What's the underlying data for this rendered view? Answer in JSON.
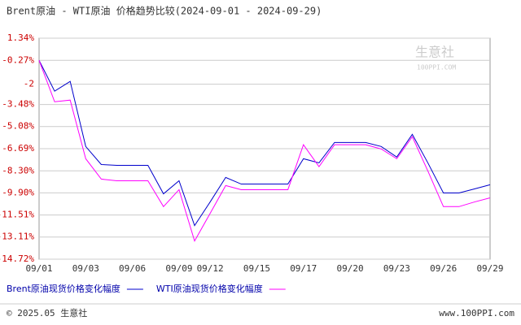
{
  "chart_data": {
    "type": "line",
    "title": "Brent原油 - WTI原油 价格趋势比较(2024-09-01 - 2024-09-29)",
    "categories": [
      "09/01",
      null,
      null,
      "09/03",
      null,
      null,
      "09/06",
      null,
      null,
      "09/09",
      null,
      "09/12",
      null,
      null,
      "09/15",
      null,
      null,
      "09/17",
      null,
      null,
      "09/20",
      null,
      null,
      "09/23",
      null,
      null,
      "09/26",
      null,
      null,
      "09/29"
    ],
    "series": [
      {
        "name": "Brent原油现货价格变化幅度",
        "color": "#0000cc",
        "values": [
          -0.27,
          -2.51,
          -1.8,
          -6.53,
          -7.84,
          -7.9,
          -7.9,
          -7.9,
          -9.97,
          -9.02,
          -12.28,
          -10.56,
          -8.78,
          -9.26,
          -9.26,
          -9.26,
          -9.26,
          -7.42,
          -7.72,
          -6.24,
          -6.24,
          -6.24,
          -6.53,
          -7.3,
          -5.65,
          -7.72,
          -9.91,
          -9.91,
          -9.61,
          -9.31
        ]
      },
      {
        "name": "WTI原油现货价格变化幅度",
        "color": "#ff00ff",
        "values": [
          -0.27,
          -3.28,
          -3.16,
          -7.42,
          -8.9,
          -9.02,
          -9.02,
          -9.02,
          -10.9,
          -9.67,
          -13.4,
          -11.39,
          -9.37,
          -9.67,
          -9.67,
          -9.67,
          -9.67,
          -6.4,
          -8.0,
          -6.4,
          -6.4,
          -6.4,
          -6.71,
          -7.42,
          -5.82,
          -8.31,
          -10.9,
          -10.9,
          -10.56,
          -10.26
        ]
      }
    ],
    "ylim": [
      -14.72,
      1.34
    ],
    "yticks": [
      {
        "value": 1.34,
        "label": "1.34%"
      },
      {
        "value": -0.27,
        "label": "-0.27%"
      },
      -2,
      {
        "value": -3.48,
        "label": "-3.48%"
      },
      {
        "value": -5.08,
        "label": "-5.08%"
      },
      {
        "value": -6.69,
        "label": "-6.69%"
      },
      {
        "value": -8.3,
        "label": "-8.30%"
      },
      {
        "value": -9.9,
        "label": "-9.90%"
      },
      {
        "value": -11.51,
        "label": "-11.51%"
      },
      {
        "value": -13.11,
        "label": "-13.11%"
      },
      {
        "value": -14.72,
        "label": "-14.72%"
      }
    ],
    "grid": true,
    "footer_left": "© 2025.05 生意社",
    "footer_right": "www.100PPI.com",
    "watermark": "生意社",
    "watermark_sub": "100PPI.COM"
  }
}
